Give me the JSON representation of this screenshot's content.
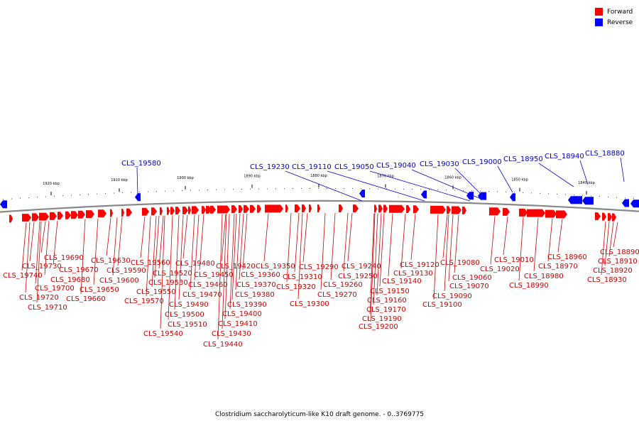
{
  "legend": {
    "forward": {
      "label": "Forward",
      "color": "#ff0000"
    },
    "reverse": {
      "label": "Reverse",
      "color": "#0000ff"
    }
  },
  "caption": "Clostridium saccharolyticum-like K10 draft genome. - 0..3769775",
  "colors": {
    "forward": "#ff0000",
    "forward_line": "#cc0000",
    "reverse": "#0000ff",
    "reverse_line": "#0000cc",
    "backbone": "#888888"
  },
  "ticks": [
    "1920 kbp",
    "1910 kbp",
    "1900 kbp",
    "1890 kbp",
    "1880 kbp",
    "1870 kbp",
    "1860 kbp",
    "1850 kbp",
    "1840 kbp"
  ],
  "reverse_genes": [
    "CLS_19580",
    "CLS_19230",
    "CLS_19110",
    "CLS_19050",
    "CLS_19040",
    "CLS_19030",
    "CLS_19000",
    "CLS_18950",
    "CLS_18940",
    "CLS_18880"
  ],
  "forward_genes": [
    "CLS_19690",
    "CLS_19730",
    "CLS_19740",
    "CLS_19680",
    "CLS_19670",
    "CLS_19700",
    "CLS_19720",
    "CLS_19710",
    "CLS_19630",
    "CLS_19590",
    "CLS_19600",
    "CLS_19650",
    "CLS_19660",
    "CLS_19560",
    "CLS_19520",
    "CLS_19530",
    "CLS_19550",
    "CLS_19570",
    "CLS_19480",
    "CLS_19450",
    "CLS_19460",
    "CLS_19470",
    "CLS_19490",
    "CLS_19500",
    "CLS_19510",
    "CLS_19540",
    "CLS_19420",
    "CLS_19350",
    "CLS_19360",
    "CLS_19370",
    "CLS_19380",
    "CLS_19390",
    "CLS_19400",
    "CLS_19410",
    "CLS_19430",
    "CLS_19440",
    "CLS_19290",
    "CLS_19310",
    "CLS_19320",
    "CLS_19300",
    "CLS_19240",
    "CLS_19250",
    "CLS_19260",
    "CLS_19270",
    "CLS_19120",
    "CLS_19130",
    "CLS_19140",
    "CLS_19150",
    "CLS_19160",
    "CLS_19170",
    "CLS_19190",
    "CLS_19200",
    "CLS_19080",
    "CLS_19060",
    "CLS_19070",
    "CLS_19090",
    "CLS_19100",
    "CLS_19010",
    "CLS_19020",
    "CLS_18960",
    "CLS_18970",
    "CLS_18980",
    "CLS_18990",
    "CLS_18890",
    "CLS_18910",
    "CLS_18920",
    "CLS_18930"
  ]
}
